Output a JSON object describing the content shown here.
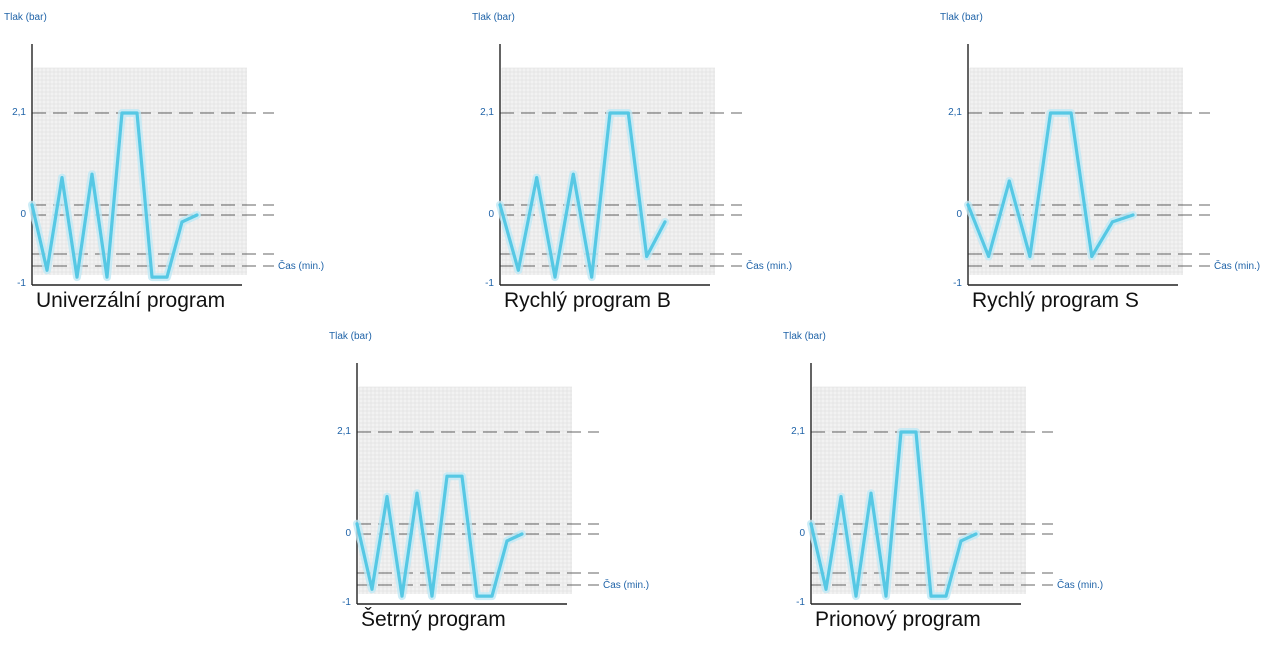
{
  "colors": {
    "line": "#56c8e4",
    "glow": "#bfe9f5",
    "axis": "#222222",
    "text": "#1f63a8",
    "title": "#111111",
    "grid": "#dcdcdc",
    "gridBg": "#f2f2f2"
  },
  "chart_data": [
    {
      "type": "line",
      "title": "Univerzální program",
      "ylabel": "Tlak (bar)",
      "xlabel": "Čas (min.)",
      "yticks": [
        "2,1",
        "0",
        "-1"
      ],
      "x": [
        0,
        1,
        2,
        3,
        4,
        5,
        6,
        7,
        8,
        9,
        10,
        11
      ],
      "values": [
        0.3,
        -0.8,
        1.1,
        -0.9,
        1.2,
        -0.9,
        3.0,
        3.0,
        -0.9,
        -0.9,
        -0.1,
        0.0
      ],
      "grid": true
    },
    {
      "type": "line",
      "title": "Rychlý program B",
      "ylabel": "Tlak (bar)",
      "xlabel": "Čas (min.)",
      "yticks": [
        "2,1",
        "0",
        "-1"
      ],
      "x": [
        0,
        1,
        2,
        3,
        4,
        5,
        6,
        7,
        8,
        9
      ],
      "values": [
        0.3,
        -0.8,
        1.1,
        -0.9,
        1.2,
        -0.9,
        3.0,
        3.0,
        -0.6,
        -0.1
      ],
      "grid": true
    },
    {
      "type": "line",
      "title": "Rychlý program S",
      "ylabel": "Tlak (bar)",
      "xlabel": "Čas (min.)",
      "yticks": [
        "2,1",
        "0",
        "-1"
      ],
      "x": [
        0,
        1,
        2,
        3,
        4,
        5,
        6,
        7,
        8
      ],
      "values": [
        0.3,
        -0.6,
        1.0,
        -0.6,
        3.0,
        3.0,
        -0.6,
        -0.1,
        0.0
      ],
      "grid": true
    },
    {
      "type": "line",
      "title": "Šetrný program",
      "ylabel": "Tlak (bar)",
      "xlabel": "Čas (min.)",
      "yticks": [
        "2,1",
        "0",
        "-1"
      ],
      "x": [
        0,
        1,
        2,
        3,
        4,
        5,
        6,
        7,
        8,
        9,
        10,
        11
      ],
      "values": [
        0.3,
        -0.8,
        1.1,
        -0.9,
        1.2,
        -0.9,
        1.7,
        1.7,
        -0.9,
        -0.9,
        -0.1,
        0.0
      ],
      "grid": true
    },
    {
      "type": "line",
      "title": "Prionový program",
      "ylabel": "Tlak (bar)",
      "xlabel": "Čas (min.)",
      "yticks": [
        "2,1",
        "0",
        "-1"
      ],
      "x": [
        0,
        1,
        2,
        3,
        4,
        5,
        6,
        7,
        8,
        9,
        10,
        11
      ],
      "values": [
        0.3,
        -0.8,
        1.1,
        -0.9,
        1.2,
        -0.9,
        3.0,
        3.0,
        -0.9,
        -0.9,
        -0.1,
        0.0
      ],
      "grid": true
    }
  ]
}
